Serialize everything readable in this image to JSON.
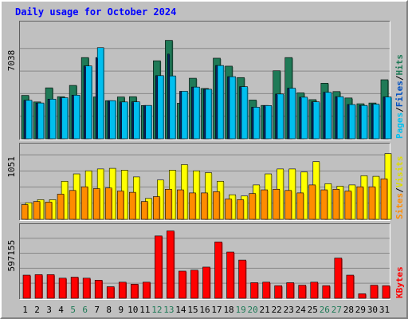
{
  "chart_data": {
    "type": "bar",
    "title": "Daily usage for October 2024",
    "categories": [
      "1",
      "2",
      "3",
      "4",
      "5",
      "6",
      "7",
      "8",
      "9",
      "10",
      "11",
      "12",
      "13",
      "14",
      "15",
      "16",
      "17",
      "18",
      "19",
      "20",
      "21",
      "22",
      "23",
      "24",
      "25",
      "26",
      "27",
      "28",
      "29",
      "30",
      "31"
    ],
    "weekend_days": [
      "5",
      "6",
      "12",
      "13",
      "19",
      "20",
      "26",
      "27"
    ],
    "panels": [
      {
        "id": "hits",
        "scale_label": "7038",
        "ylim": [
          0,
          8950
        ],
        "ylabel_parts": [
          "Pages",
          "/",
          "Files",
          "/",
          "Hits"
        ],
        "series": [
          {
            "name": "Hits",
            "color": "#1f7a57",
            "values": [
              3380,
              2870,
              3970,
              3280,
              4160,
              6330,
              3260,
              2970,
              3260,
              3280,
              2590,
              6080,
              7670,
              2770,
              4720,
              3920,
              6280,
              5660,
              4770,
              3020,
              2600,
              5300,
              6330,
              3580,
              3050,
              4330,
              3680,
              3180,
              2730,
              2790,
              4600
            ]
          },
          {
            "name": "Files",
            "color": "#00bfef",
            "values": [
              3000,
              2790,
              3090,
              3200,
              3400,
              5680,
              7100,
              2970,
              2870,
              2880,
              2600,
              4920,
              4900,
              3700,
              4030,
              3860,
              5710,
              4840,
              4060,
              2460,
              2590,
              3490,
              3940,
              3240,
              2880,
              3620,
              3280,
              2670,
              2600,
              2700,
              3260
            ]
          },
          {
            "name": "Pages",
            "color": "#082b6f",
            "values": [
              3000,
              2790,
              3090,
              3200,
              3400,
              5680,
              6330,
              2970,
              2870,
              2880,
              2600,
              4920,
              6600,
              3700,
              4030,
              3860,
              5710,
              4840,
              4060,
              2460,
              2590,
              3490,
              3940,
              3240,
              2880,
              3620,
              3280,
              2670,
              2600,
              2700,
              3260
            ]
          }
        ]
      },
      {
        "id": "visits",
        "scale_label": "1051",
        "ylim": [
          0,
          1195
        ],
        "ylabel_parts": [
          "Sites",
          "/",
          "Visits"
        ],
        "series": [
          {
            "name": "Visits",
            "color": "#ffff00",
            "values": [
              270,
              320,
              320,
              620,
              740,
              790,
              820,
              830,
              800,
              690,
              340,
              640,
              800,
              890,
              790,
              760,
              620,
              400,
              380,
              560,
              740,
              820,
              820,
              770,
              940,
              580,
              540,
              560,
              710,
              700,
              1070
            ]
          },
          {
            "name": "Sites",
            "color": "#ff8c00",
            "values": [
              240,
              290,
              280,
              410,
              470,
              530,
              500,
              510,
              460,
              440,
              290,
              370,
              490,
              480,
              430,
              430,
              450,
              330,
              320,
              420,
              480,
              490,
              470,
              430,
              560,
              480,
              490,
              460,
              530,
              530,
              660
            ]
          }
        ]
      },
      {
        "id": "kbytes",
        "scale_label": "597155",
        "ylim": [
          0,
          714000
        ],
        "ylabel_parts": [
          "KBytes"
        ],
        "series": [
          {
            "name": "KBytes",
            "color": "#ff0000",
            "values": [
              230000,
              235000,
              235000,
              200000,
              210000,
              200000,
              180000,
              115000,
              160000,
              140000,
              160000,
              620000,
              670000,
              270000,
              280000,
              310000,
              560000,
              460000,
              380000,
              155000,
              160000,
              125000,
              155000,
              130000,
              160000,
              125000,
              400000,
              230000,
              45000,
              130000,
              125000
            ]
          }
        ]
      }
    ]
  }
}
